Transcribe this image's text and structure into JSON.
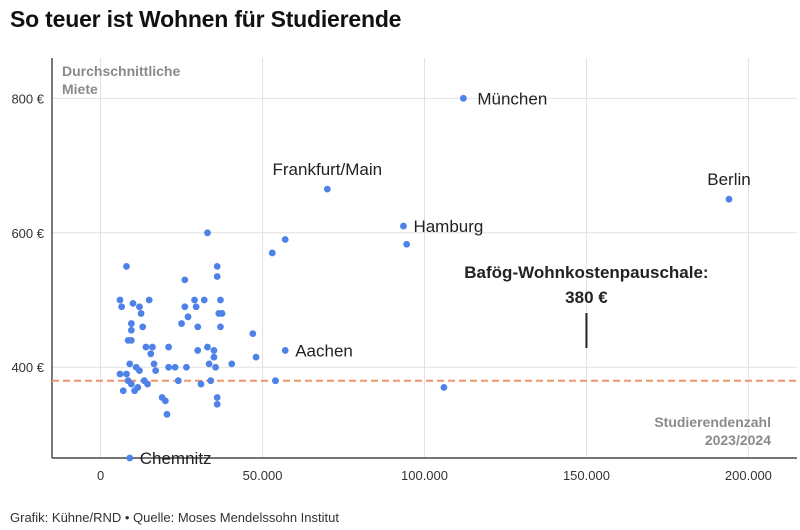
{
  "title": "So teuer ist Wohnen für Studierende",
  "footer": "Grafik: Kühne/RND • Quelle: Moses Mendelssohn Institut",
  "chart_data": {
    "type": "scatter",
    "ylabel_lines": [
      "Durchschnittliche",
      "Miete"
    ],
    "xlabel_lines": [
      "Studierendenzahl",
      "2023/2024"
    ],
    "xlim": [
      -15000,
      215000
    ],
    "ylim": [
      265,
      860
    ],
    "x_ticks": [
      {
        "value": 0,
        "label": "0"
      },
      {
        "value": 50000,
        "label": "50.000"
      },
      {
        "value": 100000,
        "label": "100.000"
      },
      {
        "value": 150000,
        "label": "150.000"
      },
      {
        "value": 200000,
        "label": "200.000"
      }
    ],
    "y_ticks": [
      {
        "value": 400,
        "label": "400 €"
      },
      {
        "value": 600,
        "label": "600 €"
      },
      {
        "value": 800,
        "label": "800 €"
      }
    ],
    "grid": true,
    "point_color": "#4f82e8",
    "reference_line": {
      "value": 380,
      "color": "#f0956a",
      "style": "dashed"
    },
    "annotation": {
      "lines": [
        "Bafög-Wohnkostenpauschale:",
        "380 €"
      ],
      "x": 150000
    },
    "labeled_points": [
      {
        "name": "München",
        "x": 112000,
        "y": 800
      },
      {
        "name": "Berlin",
        "x": 194000,
        "y": 650
      },
      {
        "name": "Frankfurt/Main",
        "x": 70000,
        "y": 665
      },
      {
        "name": "Hamburg",
        "x": 93500,
        "y": 610
      },
      {
        "name": "Aachen",
        "x": 57000,
        "y": 425
      },
      {
        "name": "Chemnitz",
        "x": 9000,
        "y": 265
      }
    ],
    "points": [
      {
        "x": 6000,
        "y": 500
      },
      {
        "x": 6500,
        "y": 490
      },
      {
        "x": 6000,
        "y": 390
      },
      {
        "x": 7000,
        "y": 365
      },
      {
        "x": 8000,
        "y": 550
      },
      {
        "x": 8000,
        "y": 390
      },
      {
        "x": 8500,
        "y": 440
      },
      {
        "x": 8500,
        "y": 380
      },
      {
        "x": 9000,
        "y": 405
      },
      {
        "x": 9500,
        "y": 465
      },
      {
        "x": 9500,
        "y": 455
      },
      {
        "x": 9500,
        "y": 440
      },
      {
        "x": 9500,
        "y": 375
      },
      {
        "x": 10000,
        "y": 495
      },
      {
        "x": 10500,
        "y": 365
      },
      {
        "x": 11000,
        "y": 400
      },
      {
        "x": 11500,
        "y": 370
      },
      {
        "x": 12000,
        "y": 490
      },
      {
        "x": 12000,
        "y": 395
      },
      {
        "x": 12500,
        "y": 480
      },
      {
        "x": 13000,
        "y": 460
      },
      {
        "x": 13500,
        "y": 380
      },
      {
        "x": 14000,
        "y": 430
      },
      {
        "x": 14500,
        "y": 375
      },
      {
        "x": 15000,
        "y": 500
      },
      {
        "x": 15500,
        "y": 420
      },
      {
        "x": 16000,
        "y": 430
      },
      {
        "x": 16500,
        "y": 405
      },
      {
        "x": 17000,
        "y": 395
      },
      {
        "x": 19000,
        "y": 355
      },
      {
        "x": 20000,
        "y": 350
      },
      {
        "x": 20500,
        "y": 330
      },
      {
        "x": 21000,
        "y": 400
      },
      {
        "x": 21000,
        "y": 430
      },
      {
        "x": 23000,
        "y": 400
      },
      {
        "x": 24000,
        "y": 380
      },
      {
        "x": 25000,
        "y": 465
      },
      {
        "x": 26000,
        "y": 530
      },
      {
        "x": 26000,
        "y": 490
      },
      {
        "x": 26500,
        "y": 400
      },
      {
        "x": 27000,
        "y": 475
      },
      {
        "x": 29000,
        "y": 500
      },
      {
        "x": 29500,
        "y": 490
      },
      {
        "x": 30000,
        "y": 460
      },
      {
        "x": 30000,
        "y": 425
      },
      {
        "x": 31000,
        "y": 375
      },
      {
        "x": 32000,
        "y": 500
      },
      {
        "x": 33000,
        "y": 600
      },
      {
        "x": 33000,
        "y": 430
      },
      {
        "x": 33500,
        "y": 405
      },
      {
        "x": 34000,
        "y": 380
      },
      {
        "x": 35000,
        "y": 425
      },
      {
        "x": 35000,
        "y": 415
      },
      {
        "x": 35500,
        "y": 400
      },
      {
        "x": 36000,
        "y": 550
      },
      {
        "x": 36000,
        "y": 535
      },
      {
        "x": 36000,
        "y": 355
      },
      {
        "x": 36000,
        "y": 345
      },
      {
        "x": 36500,
        "y": 480
      },
      {
        "x": 37000,
        "y": 500
      },
      {
        "x": 37000,
        "y": 460
      },
      {
        "x": 37500,
        "y": 480
      },
      {
        "x": 40500,
        "y": 405
      },
      {
        "x": 47000,
        "y": 450
      },
      {
        "x": 48000,
        "y": 415
      },
      {
        "x": 53000,
        "y": 570
      },
      {
        "x": 54000,
        "y": 380
      },
      {
        "x": 57000,
        "y": 590
      },
      {
        "x": 94500,
        "y": 583
      },
      {
        "x": 106000,
        "y": 370
      }
    ]
  }
}
